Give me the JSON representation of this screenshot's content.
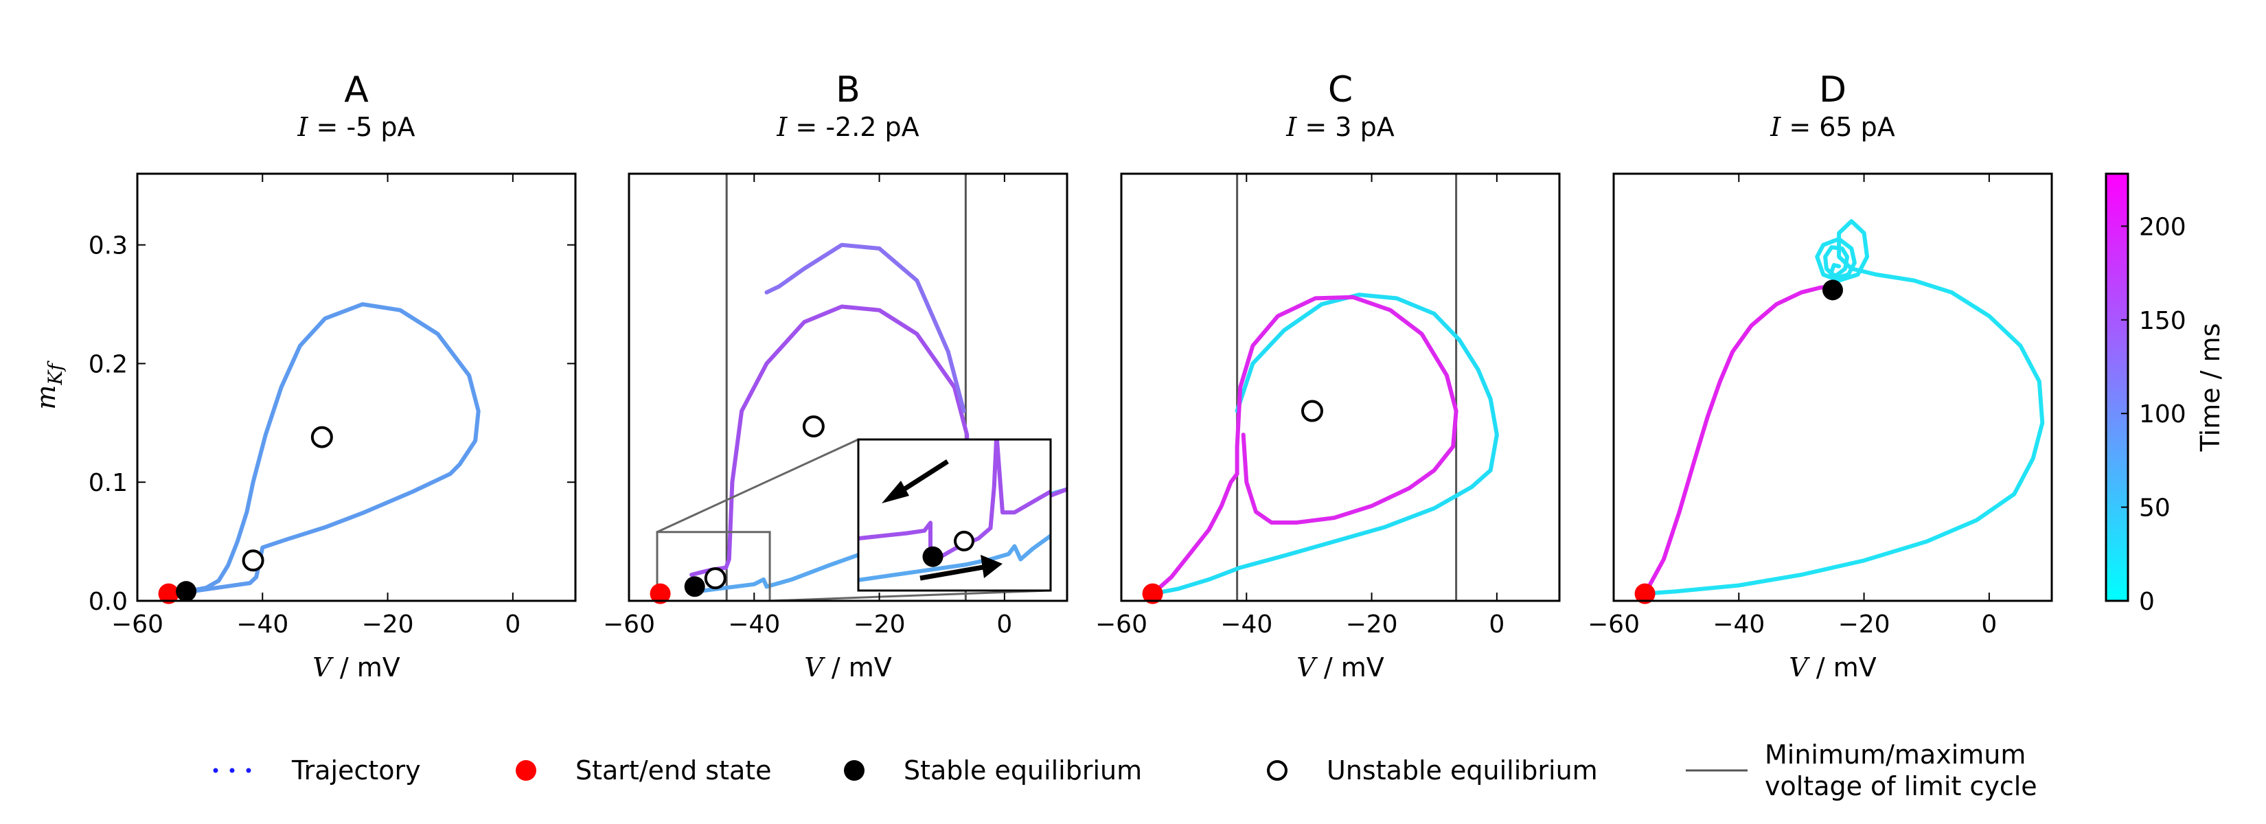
{
  "chart_data": [
    {
      "type": "line",
      "panel": "A",
      "title": "A",
      "subtitle_var": "I",
      "subtitle_rest": " = -5 pA",
      "xlabel_var": "V",
      "xlabel_rest": " / mV",
      "ylabel": "m_Kf",
      "xlim": [
        -60,
        10
      ],
      "ylim": [
        0,
        0.36
      ],
      "xticks": [
        "−60",
        "−40",
        "−20",
        "0"
      ],
      "xtick_values": [
        -60,
        -40,
        -20,
        0
      ],
      "yticks": [
        "0.0",
        "0.1",
        "0.2",
        "0.3"
      ],
      "ytick_values": [
        0,
        0.1,
        0.2,
        0.3
      ],
      "series": [
        {
          "color": "#5e9bef",
          "x": [
            -52.5,
            -50,
            -46,
            -42,
            -41,
            -40,
            -36,
            -30,
            -24,
            -16,
            -10,
            -8.5,
            -6,
            -5.5,
            -7,
            -12,
            -18,
            -24,
            -30,
            -34,
            -37,
            -39.5,
            -41.5,
            -42.5,
            -44,
            -45.5,
            -47,
            -49,
            -51,
            -52.5
          ],
          "y": [
            0.007,
            0.009,
            0.012,
            0.015,
            0.02,
            0.045,
            0.052,
            0.062,
            0.074,
            0.092,
            0.107,
            0.115,
            0.135,
            0.16,
            0.19,
            0.225,
            0.245,
            0.25,
            0.238,
            0.215,
            0.18,
            0.14,
            0.1,
            0.075,
            0.05,
            0.03,
            0.017,
            0.011,
            0.009,
            0.007
          ]
        }
      ],
      "start_state": [
        -55,
        0.006
      ],
      "stable_equilibria": [
        [
          -52.2,
          0.008
        ]
      ],
      "unstable_equilibria": [
        [
          -41.5,
          0.034
        ],
        [
          -30.5,
          0.138
        ]
      ],
      "limit_lines": []
    },
    {
      "type": "line",
      "panel": "B",
      "title": "B",
      "subtitle_var": "I",
      "subtitle_rest": " = -2.2 pA",
      "xlabel_var": "V",
      "xlabel_rest": " / mV",
      "xlim": [
        -60,
        10
      ],
      "ylim": [
        0,
        0.36
      ],
      "xticks": [
        "−60",
        "−40",
        "−20",
        "0"
      ],
      "xtick_values": [
        -60,
        -40,
        -20,
        0
      ],
      "series": [
        {
          "color": "#5aa8f0",
          "x": [
            -49,
            -46,
            -43,
            -40,
            -38.5,
            -38,
            -34,
            -28,
            -20,
            -12,
            -4,
            2,
            8,
            10
          ],
          "y": [
            0.008,
            0.01,
            0.012,
            0.014,
            0.018,
            0.012,
            0.018,
            0.03,
            0.045,
            0.06,
            0.072,
            0.081,
            0.091,
            0.094
          ]
        },
        {
          "color": "#a052ec",
          "x": [
            -50,
            -47,
            -44.5,
            -44,
            -43.5,
            -42,
            -38,
            -32,
            -26,
            -20,
            -14,
            -8,
            -6.5,
            -6,
            -6,
            -5.5,
            -4,
            0,
            4,
            8,
            10
          ],
          "y": [
            0.022,
            0.026,
            0.028,
            0.035,
            0.1,
            0.16,
            0.2,
            0.235,
            0.248,
            0.245,
            0.225,
            0.18,
            0.15,
            0.14,
            0.13,
            0.075,
            0.074,
            0.076,
            0.082,
            0.09,
            0.094
          ]
        },
        {
          "color": "#8a72f2",
          "x": [
            -38,
            -36,
            -32,
            -26,
            -20,
            -14,
            -9,
            -6.5
          ],
          "y": [
            0.26,
            0.265,
            0.28,
            0.3,
            0.297,
            0.27,
            0.21,
            0.16
          ]
        }
      ],
      "start_state": [
        -55,
        0.006
      ],
      "stable_equilibria": [
        [
          -49.5,
          0.012
        ]
      ],
      "unstable_equilibria": [
        [
          -46.2,
          0.019
        ],
        [
          -30.5,
          0.147
        ]
      ],
      "limit_lines": [
        -44.4,
        -6.2
      ],
      "inset": {
        "xlim": [
          -55,
          -39
        ],
        "ylim": [
          0,
          0.058
        ],
        "series": [
          {
            "color": "#5aa8f0",
            "x": [
              -55,
              -52,
              -49,
              -46,
              -44,
              -42.5,
              -42,
              -41.5,
              -40.5,
              -39
            ],
            "y": [
              0.004,
              0.006,
              0.008,
              0.01,
              0.012,
              0.014,
              0.017,
              0.012,
              0.016,
              0.021
            ]
          },
          {
            "color": "#a052ec",
            "x": [
              -55,
              -53,
              -51,
              -49.5,
              -49,
              -49,
              -48.5,
              -47,
              -45,
              -44,
              -43.7,
              -43.5,
              -43,
              -42,
              -40.5,
              -39
            ],
            "y": [
              0.02,
              0.021,
              0.022,
              0.023,
              0.026,
              0.016,
              0.012,
              0.016,
              0.02,
              0.024,
              0.04,
              0.06,
              0.03,
              0.03,
              0.034,
              0.038
            ]
          }
        ],
        "stable_equilibria": [
          [
            -48.8,
            0.013
          ]
        ],
        "unstable_equilibria": [
          [
            -46.2,
            0.019
          ]
        ]
      }
    },
    {
      "type": "line",
      "panel": "C",
      "title": "C",
      "subtitle_var": "I",
      "subtitle_rest": " = 3 pA",
      "xlabel_var": "V",
      "xlabel_rest": " / mV",
      "xlim": [
        -60,
        10
      ],
      "ylim": [
        0,
        0.36
      ],
      "xticks": [
        "−60",
        "−40",
        "−20",
        "0"
      ],
      "xtick_values": [
        -60,
        -40,
        -20,
        0
      ],
      "series": [
        {
          "color": "#22ddf5",
          "x": [
            -55,
            -51,
            -46,
            -41,
            -34,
            -26,
            -18,
            -10,
            -4,
            -1,
            0,
            -1,
            -3,
            -6,
            -10,
            -16,
            -22,
            -28,
            -34,
            -39,
            -41.5
          ],
          "y": [
            0.006,
            0.01,
            0.018,
            0.028,
            0.038,
            0.05,
            0.062,
            0.078,
            0.096,
            0.11,
            0.14,
            0.17,
            0.195,
            0.22,
            0.242,
            0.255,
            0.258,
            0.25,
            0.228,
            0.2,
            0.16
          ]
        },
        {
          "color": "#dc28ef",
          "x": [
            -55,
            -52,
            -49,
            -46,
            -44,
            -42.5,
            -41.5,
            -41.5,
            -41,
            -39,
            -35,
            -29,
            -23,
            -17,
            -12,
            -8,
            -6.5,
            -7,
            -10,
            -14,
            -20,
            -26,
            -32,
            -36,
            -38.5,
            -40,
            -40.5
          ],
          "y": [
            0.006,
            0.02,
            0.04,
            0.06,
            0.08,
            0.1,
            0.107,
            0.13,
            0.18,
            0.215,
            0.24,
            0.255,
            0.256,
            0.245,
            0.225,
            0.19,
            0.16,
            0.13,
            0.11,
            0.095,
            0.08,
            0.07,
            0.066,
            0.066,
            0.075,
            0.1,
            0.14
          ]
        }
      ],
      "start_state": [
        -55,
        0.006
      ],
      "stable_equilibria": [],
      "unstable_equilibria": [
        [
          -29.5,
          0.16
        ]
      ],
      "limit_lines": [
        -41.5,
        -6.5
      ]
    },
    {
      "type": "line",
      "panel": "D",
      "title": "D",
      "subtitle_var": "I",
      "subtitle_rest": " = 65 pA",
      "xlabel_var": "V",
      "xlabel_rest": " / mV",
      "xlim": [
        -60,
        10
      ],
      "ylim": [
        0,
        0.36
      ],
      "xticks": [
        "−60",
        "−40",
        "−20",
        "0"
      ],
      "xtick_values": [
        -60,
        -40,
        -20,
        0
      ],
      "series": [
        {
          "color": "#e124ef",
          "x": [
            -55,
            -52,
            -49.5,
            -47,
            -45,
            -43,
            -41,
            -38,
            -34,
            -30,
            -27,
            -25
          ],
          "y": [
            0.006,
            0.035,
            0.075,
            0.12,
            0.155,
            0.185,
            0.21,
            0.232,
            0.25,
            0.26,
            0.264,
            0.265
          ]
        },
        {
          "color": "#22e3f5",
          "x": [
            -55,
            -50,
            -40,
            -30,
            -20,
            -10,
            -2,
            4,
            7,
            8.5,
            8,
            5,
            0,
            -6,
            -12,
            -18,
            -22,
            -24,
            -24,
            -22,
            -20,
            -19.5,
            -21,
            -24,
            -26.5,
            -27.5,
            -26.5,
            -24,
            -22,
            -21.5,
            -22.5,
            -24.5,
            -26,
            -26.2,
            -25.2,
            -23.5,
            -22.7,
            -23,
            -24.5,
            -25.3,
            -24.8,
            -24
          ],
          "y": [
            0.006,
            0.008,
            0.013,
            0.022,
            0.034,
            0.05,
            0.068,
            0.09,
            0.12,
            0.15,
            0.185,
            0.215,
            0.24,
            0.26,
            0.27,
            0.275,
            0.28,
            0.29,
            0.31,
            0.32,
            0.31,
            0.29,
            0.275,
            0.27,
            0.275,
            0.29,
            0.3,
            0.305,
            0.297,
            0.285,
            0.275,
            0.272,
            0.28,
            0.29,
            0.298,
            0.297,
            0.29,
            0.28,
            0.274,
            0.276,
            0.283,
            0.282
          ]
        }
      ],
      "start_state": [
        -55,
        0.006
      ],
      "stable_equilibria": [
        [
          -25,
          0.262
        ]
      ],
      "unstable_equilibria": [],
      "limit_lines": []
    }
  ],
  "colorbar": {
    "label": "Time / ms",
    "min": 0,
    "max": 228,
    "ticks": [
      "0",
      "50",
      "100",
      "150",
      "200"
    ],
    "tick_values": [
      0,
      50,
      100,
      150,
      200
    ],
    "color_low": "#00ffff",
    "color_high": "#ff00ff"
  },
  "legend": {
    "items": [
      {
        "key": "trajectory",
        "label": "Trajectory"
      },
      {
        "key": "start",
        "label": "Start/end state"
      },
      {
        "key": "stable",
        "label": "Stable equilibrium"
      },
      {
        "key": "unstable",
        "label": "Unstable equilibrium"
      },
      {
        "key": "limit",
        "label": "Minimum/maximum",
        "label2": "voltage of limit cycle"
      }
    ],
    "colors": {
      "trajectory": "#1a1aff",
      "start": "#ff0000",
      "stable": "#000000",
      "unstable": "#ffffff",
      "limit": "#555555"
    }
  }
}
